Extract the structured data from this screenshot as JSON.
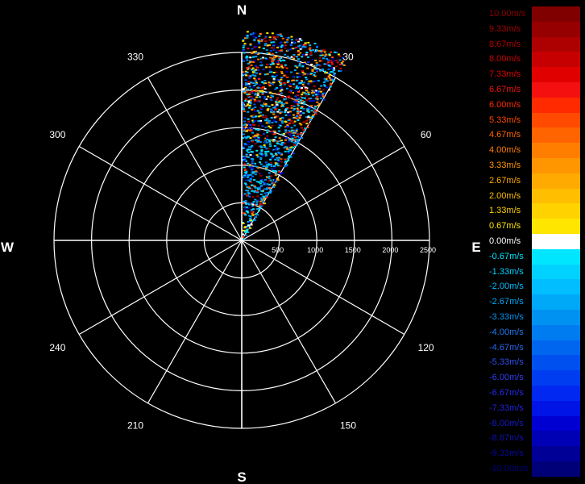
{
  "chart_data": {
    "type": "polar-radar-ppi",
    "title": "",
    "compass_labels": {
      "N": "N",
      "E": "E",
      "S": "S",
      "W": "W"
    },
    "azimuth_labels": [
      {
        "deg": 30,
        "text": "30"
      },
      {
        "deg": 60,
        "text": "60"
      },
      {
        "deg": 120,
        "text": "120"
      },
      {
        "deg": 150,
        "text": "150"
      },
      {
        "deg": 210,
        "text": "210"
      },
      {
        "deg": 240,
        "text": "240"
      },
      {
        "deg": 300,
        "text": "300"
      },
      {
        "deg": 330,
        "text": "330"
      }
    ],
    "range_rings": [
      500,
      1000,
      1500,
      2000,
      2500
    ],
    "range_labels": [
      "500",
      "1000",
      "1500",
      "2000",
      "2500"
    ],
    "range_max": 2500,
    "spoke_interval_deg": 30,
    "data_sector_deg": [
      0,
      30
    ],
    "legend": [
      {
        "label": "10.00m/s",
        "color": "#800000",
        "text_color": "#8b0000"
      },
      {
        "label": "9.33m/s",
        "color": "#960000",
        "text_color": "#a00000"
      },
      {
        "label": "8.67m/s",
        "color": "#ad0000",
        "text_color": "#b40000"
      },
      {
        "label": "8.00m/s",
        "color": "#c60000",
        "text_color": "#c80000"
      },
      {
        "label": "7.33m/s",
        "color": "#e00000",
        "text_color": "#dc0000"
      },
      {
        "label": "6.67m/s",
        "color": "#f51010",
        "text_color": "#ef1010"
      },
      {
        "label": "6.00m/s",
        "color": "#ff2a00",
        "text_color": "#ff2a00"
      },
      {
        "label": "5.33m/s",
        "color": "#ff4a00",
        "text_color": "#ff4a00"
      },
      {
        "label": "4.67m/s",
        "color": "#ff6400",
        "text_color": "#ff6400"
      },
      {
        "label": "4.00m/s",
        "color": "#ff7e00",
        "text_color": "#ff7e00"
      },
      {
        "label": "3.33m/s",
        "color": "#ff9600",
        "text_color": "#ff9600"
      },
      {
        "label": "2.67m/s",
        "color": "#ffaa00",
        "text_color": "#ffaa00"
      },
      {
        "label": "2.00m/s",
        "color": "#ffbe00",
        "text_color": "#ffbe00"
      },
      {
        "label": "1.33m/s",
        "color": "#ffd200",
        "text_color": "#ffd200"
      },
      {
        "label": "0.67m/s",
        "color": "#ffe600",
        "text_color": "#ffe600"
      },
      {
        "label": "0.00m/s",
        "color": "#ffffff",
        "text_color": "#ffffff"
      },
      {
        "label": "-0.67m/s",
        "color": "#00e6ff",
        "text_color": "#00e6ff"
      },
      {
        "label": "-1.33m/s",
        "color": "#00d2ff",
        "text_color": "#00d2ff"
      },
      {
        "label": "-2.00m/s",
        "color": "#00beff",
        "text_color": "#00beff"
      },
      {
        "label": "-2.67m/s",
        "color": "#00a8f8",
        "text_color": "#00a8f8"
      },
      {
        "label": "-3.33m/s",
        "color": "#0092f0",
        "text_color": "#0092f0"
      },
      {
        "label": "-4.00m/s",
        "color": "#007cf0",
        "text_color": "#1e7cf0"
      },
      {
        "label": "-4.67m/s",
        "color": "#0066f0",
        "text_color": "#2a66f0"
      },
      {
        "label": "-5.33m/s",
        "color": "#0050f0",
        "text_color": "#3050f0"
      },
      {
        "label": "-6.00m/s",
        "color": "#003cf0",
        "text_color": "#303cf0"
      },
      {
        "label": "-6.67m/s",
        "color": "#0028f0",
        "text_color": "#2828f0"
      },
      {
        "label": "-7.33m/s",
        "color": "#0014e6",
        "text_color": "#2020e0"
      },
      {
        "label": "-8.00m/s",
        "color": "#0000d2",
        "text_color": "#1818c8"
      },
      {
        "label": "-8.67m/s",
        "color": "#0000b4",
        "text_color": "#1010b0"
      },
      {
        "label": "-9.33m/s",
        "color": "#000096",
        "text_color": "#080898"
      },
      {
        "label": "-10.00m/s",
        "color": "#000078",
        "text_color": "#000080"
      }
    ]
  }
}
